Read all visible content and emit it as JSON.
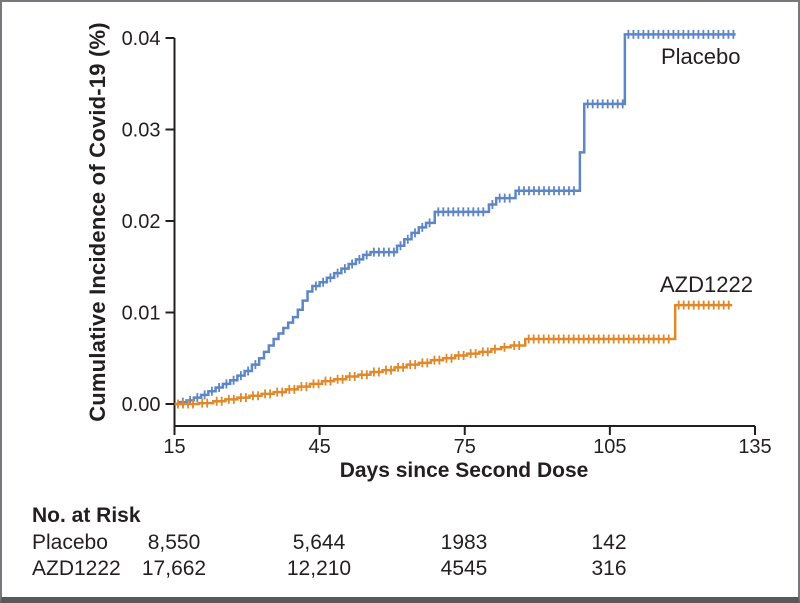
{
  "figure": {
    "background": "#ffffff",
    "border_color": "#77787b",
    "bottom_bar_color": "#58595b",
    "text_color": "#231f20",
    "axis_color": "#231f20"
  },
  "chart_data": {
    "type": "line",
    "subtype": "kaplan-meier-step-with-censor-ticks",
    "title": "",
    "xlabel": "Days since Second Dose",
    "ylabel": "Cumulative Incidence of Covid-19 (%)",
    "xlim": [
      15,
      135
    ],
    "ylim": [
      0,
      0.04
    ],
    "grid": false,
    "legend_position": "inline-labels",
    "x_ticks": [
      {
        "v": 15,
        "label": "15"
      },
      {
        "v": 45,
        "label": "45"
      },
      {
        "v": 75,
        "label": "75"
      },
      {
        "v": 105,
        "label": "105"
      },
      {
        "v": 135,
        "label": "135"
      }
    ],
    "y_ticks": [
      {
        "v": 0.0,
        "label": "0.00"
      },
      {
        "v": 0.01,
        "label": "0.01"
      },
      {
        "v": 0.02,
        "label": "0.02"
      },
      {
        "v": 0.03,
        "label": "0.03"
      },
      {
        "v": 0.04,
        "label": "0.04"
      }
    ],
    "series": [
      {
        "name": "Placebo",
        "color": "#5e86c5",
        "points": [
          [
            15,
            0.0
          ],
          [
            16,
            0.0002
          ],
          [
            17.5,
            0.0004
          ],
          [
            19,
            0.0007
          ],
          [
            20.5,
            0.001
          ],
          [
            22,
            0.0014
          ],
          [
            23.5,
            0.0018
          ],
          [
            25,
            0.0022
          ],
          [
            26.5,
            0.0026
          ],
          [
            28,
            0.0031
          ],
          [
            29.5,
            0.0036
          ],
          [
            31,
            0.0043
          ],
          [
            32.5,
            0.005
          ],
          [
            33.5,
            0.0057
          ],
          [
            34.5,
            0.0064
          ],
          [
            35.5,
            0.0071
          ],
          [
            36.5,
            0.0077
          ],
          [
            37.5,
            0.0083
          ],
          [
            38.5,
            0.0089
          ],
          [
            39.5,
            0.0095
          ],
          [
            40.5,
            0.0103
          ],
          [
            41.5,
            0.0113
          ],
          [
            42.5,
            0.0123
          ],
          [
            43.5,
            0.0129
          ],
          [
            45,
            0.0133
          ],
          [
            46.5,
            0.0138
          ],
          [
            48,
            0.0143
          ],
          [
            49.5,
            0.0148
          ],
          [
            51,
            0.0153
          ],
          [
            52.5,
            0.0158
          ],
          [
            54,
            0.0163
          ],
          [
            55.5,
            0.0166
          ],
          [
            61,
            0.0173
          ],
          [
            62.5,
            0.018
          ],
          [
            64,
            0.0187
          ],
          [
            65.5,
            0.0193
          ],
          [
            67,
            0.0198
          ],
          [
            68.8,
            0.021
          ],
          [
            80,
            0.0218
          ],
          [
            81.5,
            0.0225
          ],
          [
            85.5,
            0.0233
          ],
          [
            98.8,
            0.0275
          ],
          [
            99.7,
            0.0328
          ],
          [
            108.1,
            0.0404
          ],
          [
            131,
            0.0404
          ]
        ]
      },
      {
        "name": "AZD1222",
        "color": "#e0892b",
        "points": [
          [
            15,
            0.0
          ],
          [
            20,
            0.0001
          ],
          [
            23,
            0.0003
          ],
          [
            25.5,
            0.0005
          ],
          [
            28,
            0.0007
          ],
          [
            30.5,
            0.0009
          ],
          [
            33,
            0.0011
          ],
          [
            35.5,
            0.0013
          ],
          [
            38,
            0.0016
          ],
          [
            40.5,
            0.0019
          ],
          [
            43,
            0.0022
          ],
          [
            45.5,
            0.0025
          ],
          [
            48,
            0.0027
          ],
          [
            50.5,
            0.003
          ],
          [
            53,
            0.0032
          ],
          [
            55.5,
            0.0035
          ],
          [
            58,
            0.0037
          ],
          [
            60.5,
            0.004
          ],
          [
            63,
            0.0043
          ],
          [
            65.5,
            0.0045
          ],
          [
            68,
            0.0048
          ],
          [
            70.5,
            0.005
          ],
          [
            73,
            0.0053
          ],
          [
            75.5,
            0.0055
          ],
          [
            78,
            0.0057
          ],
          [
            80.5,
            0.006
          ],
          [
            82.5,
            0.0062
          ],
          [
            84.5,
            0.0064
          ],
          [
            87.5,
            0.0071
          ],
          [
            118.5,
            0.0108
          ],
          [
            130.3,
            0.0108
          ]
        ]
      }
    ]
  },
  "curve_labels": [
    {
      "text": "Placebo"
    },
    {
      "text": "AZD1222"
    }
  ],
  "at_risk": {
    "title": "No. at Risk",
    "rows": [
      {
        "label": "Placebo",
        "values": [
          "8,550",
          "5,644",
          "1983",
          "142"
        ]
      },
      {
        "label": "AZD1222",
        "values": [
          "17,662",
          "12,210",
          "4545",
          "316"
        ]
      }
    ]
  }
}
